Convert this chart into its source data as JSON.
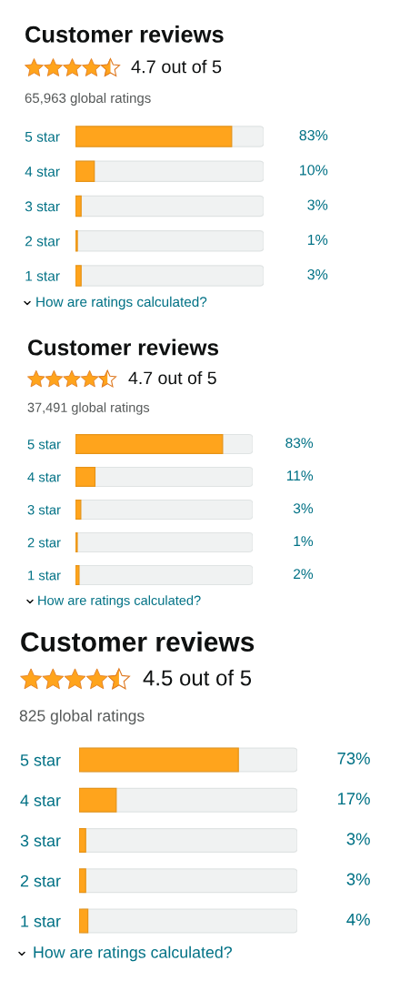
{
  "chart_data": [
    {
      "type": "bar",
      "orientation": "horizontal",
      "title": "Customer reviews",
      "subtitle": "4.7 out of 5",
      "categories": [
        "5 star",
        "4 star",
        "3 star",
        "2 star",
        "1 star"
      ],
      "values": [
        83,
        10,
        3,
        1,
        3
      ],
      "value_labels": [
        "83%",
        "10%",
        "3%",
        "1%",
        "3%"
      ],
      "color": "#ffa41c",
      "xlim": [
        0,
        100
      ],
      "tick_labels": "y",
      "annotations": [
        "65,963 global ratings",
        "How are ratings calculated?"
      ]
    },
    {
      "type": "bar",
      "orientation": "horizontal",
      "title": "Customer reviews",
      "subtitle": "4.7 out of 5",
      "categories": [
        "5 star",
        "4 star",
        "3 star",
        "2 star",
        "1 star"
      ],
      "values": [
        83,
        11,
        3,
        1,
        2
      ],
      "value_labels": [
        "83%",
        "11%",
        "3%",
        "1%",
        "2%"
      ],
      "color": "#ffa41c",
      "xlim": [
        0,
        100
      ],
      "tick_labels": "y",
      "annotations": [
        "37,491 global ratings",
        "How are ratings calculated?"
      ]
    },
    {
      "type": "bar",
      "orientation": "horizontal",
      "title": "Customer reviews",
      "subtitle": "4.5 out of 5",
      "categories": [
        "5 star",
        "4 star",
        "3 star",
        "2 star",
        "1 star"
      ],
      "values": [
        73,
        17,
        3,
        3,
        4
      ],
      "value_labels": [
        "73%",
        "17%",
        "3%",
        "3%",
        "4%"
      ],
      "color": "#ffa41c",
      "xlim": [
        0,
        100
      ],
      "tick_labels": "y",
      "annotations": [
        "825 global ratings",
        "How are ratings calculated?"
      ]
    }
  ]
}
